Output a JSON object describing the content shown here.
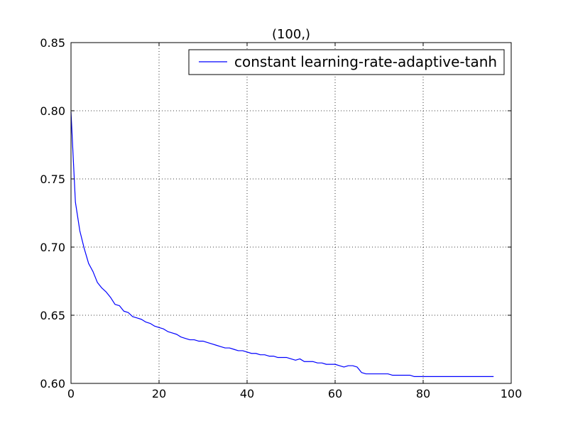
{
  "chart_data": {
    "type": "line",
    "title": "(100,)",
    "xlabel": "",
    "ylabel": "",
    "xlim": [
      0,
      100
    ],
    "ylim": [
      0.6,
      0.85
    ],
    "xticks": [
      0,
      20,
      40,
      60,
      80,
      100
    ],
    "yticks": [
      0.6,
      0.65,
      0.7,
      0.75,
      0.8,
      0.85
    ],
    "xtick_labels": [
      "0",
      "20",
      "40",
      "60",
      "80",
      "100"
    ],
    "ytick_labels": [
      "0.60",
      "0.65",
      "0.70",
      "0.75",
      "0.80",
      "0.85"
    ],
    "grid": true,
    "legend_position": "upper right",
    "series": [
      {
        "name": "constant learning-rate-adaptive-tanh",
        "color": "#0000ff",
        "x": [
          0,
          1,
          2,
          3,
          4,
          5,
          6,
          7,
          8,
          9,
          10,
          11,
          12,
          13,
          14,
          15,
          16,
          17,
          18,
          19,
          20,
          21,
          22,
          23,
          24,
          25,
          26,
          27,
          28,
          29,
          30,
          31,
          32,
          33,
          34,
          35,
          36,
          37,
          38,
          39,
          40,
          41,
          42,
          43,
          44,
          45,
          46,
          47,
          48,
          49,
          50,
          51,
          52,
          53,
          54,
          55,
          56,
          57,
          58,
          59,
          60,
          61,
          62,
          63,
          64,
          65,
          66,
          67,
          68,
          69,
          70,
          71,
          72,
          73,
          74,
          75,
          76,
          77,
          78,
          79,
          80,
          81,
          82,
          83,
          84,
          85,
          86,
          87,
          88,
          89,
          90,
          91,
          92,
          93,
          94,
          95,
          96
        ],
        "y": [
          0.799,
          0.733,
          0.712,
          0.699,
          0.688,
          0.682,
          0.674,
          0.67,
          0.667,
          0.663,
          0.658,
          0.657,
          0.653,
          0.652,
          0.649,
          0.648,
          0.647,
          0.645,
          0.644,
          0.642,
          0.641,
          0.64,
          0.638,
          0.637,
          0.636,
          0.634,
          0.633,
          0.632,
          0.632,
          0.631,
          0.631,
          0.63,
          0.629,
          0.628,
          0.627,
          0.626,
          0.626,
          0.625,
          0.624,
          0.624,
          0.623,
          0.622,
          0.622,
          0.621,
          0.621,
          0.62,
          0.62,
          0.619,
          0.619,
          0.619,
          0.618,
          0.617,
          0.618,
          0.616,
          0.616,
          0.616,
          0.615,
          0.615,
          0.614,
          0.614,
          0.614,
          0.613,
          0.612,
          0.613,
          0.613,
          0.612,
          0.608,
          0.607,
          0.607,
          0.607,
          0.607,
          0.607,
          0.607,
          0.606,
          0.606,
          0.606,
          0.606,
          0.606,
          0.605,
          0.605,
          0.605,
          0.605,
          0.605,
          0.605,
          0.605,
          0.605,
          0.605,
          0.605,
          0.605,
          0.605,
          0.605,
          0.605,
          0.605,
          0.605,
          0.605,
          0.605,
          0.605
        ]
      }
    ]
  }
}
